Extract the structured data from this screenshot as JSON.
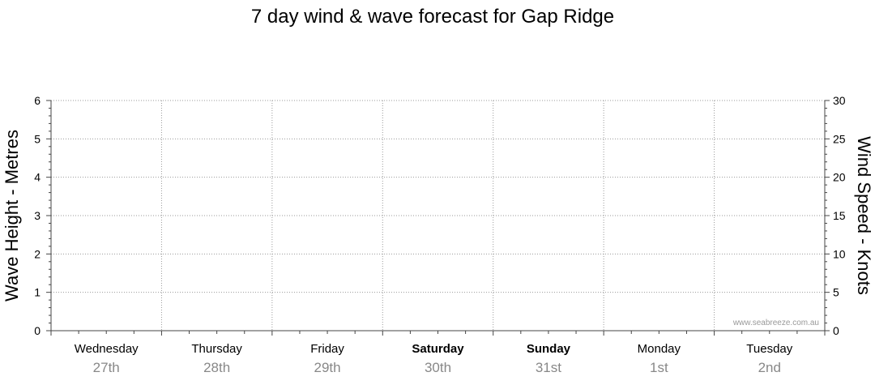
{
  "chart_data": {
    "type": "line",
    "title": "7 day wind & wave forecast for Gap Ridge",
    "y_left": {
      "label": "Wave Height - Metres",
      "range": [
        0,
        6
      ],
      "ticks": [
        0,
        1,
        2,
        3,
        4,
        5,
        6
      ]
    },
    "y_right": {
      "label": "Wind Speed - Knots",
      "range": [
        0,
        30
      ],
      "ticks": [
        0,
        5,
        10,
        15,
        20,
        25,
        30
      ]
    },
    "days": [
      {
        "name": "Wednesday",
        "date": "27th",
        "bold": false
      },
      {
        "name": "Thursday",
        "date": "28th",
        "bold": false
      },
      {
        "name": "Friday",
        "date": "29th",
        "bold": false
      },
      {
        "name": "Saturday",
        "date": "30th",
        "bold": true
      },
      {
        "name": "Sunday",
        "date": "31st",
        "bold": true
      },
      {
        "name": "Monday",
        "date": "1st",
        "bold": false
      },
      {
        "name": "Tuesday",
        "date": "2nd",
        "bold": false
      }
    ],
    "grid": true,
    "series": []
  },
  "watermark": "www.seabreeze.com.au"
}
